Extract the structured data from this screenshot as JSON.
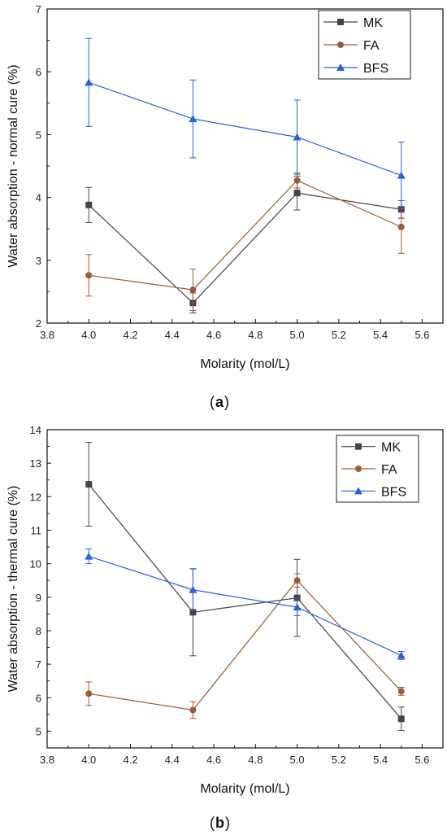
{
  "chart_data": [
    {
      "type": "line",
      "panel_label": "a",
      "xlabel": "Molarity (mol/L)",
      "ylabel": "Water absorption - normal cure (%)",
      "xlim": [
        3.8,
        5.7
      ],
      "ylim": [
        2,
        7
      ],
      "x_ticks": [
        3.8,
        4.0,
        4.2,
        4.4,
        4.6,
        4.8,
        5.0,
        5.2,
        5.4,
        5.6
      ],
      "x_tick_labels": [
        "3.8",
        "4.0",
        "4.2",
        "4.4",
        "4.6",
        "4.8",
        "5.0",
        "5.2",
        "5.4",
        "5.6"
      ],
      "y_ticks": [
        2,
        3,
        4,
        5,
        6,
        7
      ],
      "y_tick_labels": [
        "2",
        "3",
        "4",
        "5",
        "6",
        "7"
      ],
      "legend_position": "top-right",
      "grid": false,
      "x": [
        4.0,
        4.5,
        5.0,
        5.5
      ],
      "series": [
        {
          "name": "MK",
          "marker": "square",
          "color": "#454545",
          "values": [
            3.88,
            2.32,
            4.07,
            3.81
          ],
          "errors": [
            0.28,
            0.16,
            0.27,
            0.14
          ]
        },
        {
          "name": "FA",
          "marker": "circle",
          "color": "#a05a36",
          "values": [
            2.76,
            2.53,
            4.27,
            3.53
          ],
          "errors": [
            0.33,
            0.33,
            0.12,
            0.42
          ]
        },
        {
          "name": "BFS",
          "marker": "triangle",
          "color": "#2a62d8",
          "values": [
            5.83,
            5.25,
            4.96,
            4.35
          ],
          "errors": [
            0.7,
            0.62,
            0.59,
            0.53
          ]
        }
      ]
    },
    {
      "type": "line",
      "panel_label": "b",
      "xlabel": "Molarity (mol/L)",
      "ylabel": "Water absorption - thermal cure (%)",
      "xlim": [
        3.8,
        5.7
      ],
      "ylim": [
        4.5,
        14
      ],
      "x_ticks": [
        3.8,
        4.0,
        4.2,
        4.4,
        4.6,
        4.8,
        5.0,
        5.2,
        5.4,
        5.6
      ],
      "x_tick_labels": [
        "3.8",
        "4.0",
        "4.2",
        "4.4",
        "4.6",
        "4.8",
        "5.0",
        "5.2",
        "5.4",
        "5.6"
      ],
      "y_ticks": [
        5,
        6,
        7,
        8,
        9,
        10,
        11,
        12,
        13,
        14
      ],
      "y_tick_labels": [
        "5",
        "6",
        "7",
        "8",
        "9",
        "10",
        "11",
        "12",
        "13",
        "14"
      ],
      "legend_position": "top-right",
      "grid": false,
      "x": [
        4.0,
        4.5,
        5.0,
        5.5
      ],
      "series": [
        {
          "name": "MK",
          "marker": "square",
          "color": "#454545",
          "values": [
            12.37,
            8.55,
            8.98,
            5.37
          ],
          "errors": [
            1.25,
            1.3,
            1.15,
            0.35
          ]
        },
        {
          "name": "FA",
          "marker": "circle",
          "color": "#a05a36",
          "values": [
            6.12,
            5.63,
            9.5,
            6.19
          ],
          "errors": [
            0.35,
            0.25,
            0.2,
            0.12
          ]
        },
        {
          "name": "BFS",
          "marker": "triangle",
          "color": "#2a62d8",
          "values": [
            10.22,
            9.22,
            8.7,
            7.26
          ],
          "errors": [
            0.22,
            0.62,
            0.25,
            0.12
          ]
        }
      ]
    }
  ]
}
